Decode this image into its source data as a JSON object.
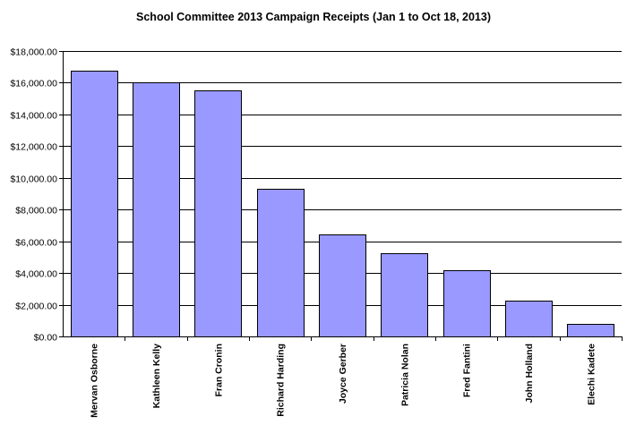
{
  "chart_data": {
    "type": "bar",
    "title": "School Committee 2013 Campaign Receipts (Jan 1 to Oct 18, 2013)",
    "xlabel": "",
    "ylabel": "",
    "categories": [
      "Mervan Osborne",
      "Kathleen Kelly",
      "Fran Cronin",
      "Richard Harding",
      "Joyce Gerber",
      "Patricia Nolan",
      "Fred Fantini",
      "John Holland",
      "Elechi Kadete"
    ],
    "values": [
      16750,
      16050,
      15500,
      9300,
      6450,
      5250,
      4200,
      2250,
      800
    ],
    "ylim": [
      0,
      18000
    ],
    "yticks": [
      0,
      2000,
      4000,
      6000,
      8000,
      10000,
      12000,
      14000,
      16000,
      18000
    ],
    "ytick_labels": [
      "$0.00",
      "$2,000.00",
      "$4,000.00",
      "$6,000.00",
      "$8,000.00",
      "$10,000.00",
      "$12,000.00",
      "$14,000.00",
      "$16,000.00",
      "$18,000.00"
    ],
    "grid": true,
    "legend": "none",
    "bar_color": "#9999FF",
    "bar_edge_color": "#000000",
    "grid_color": "#000000"
  }
}
